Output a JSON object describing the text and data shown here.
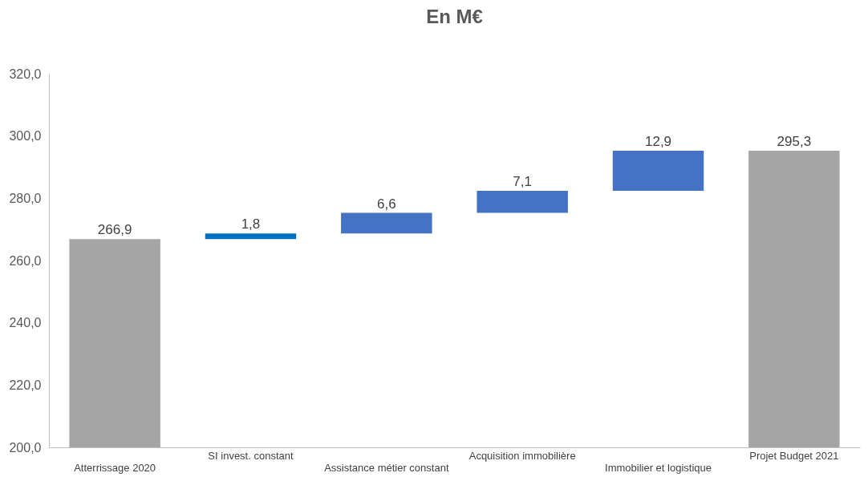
{
  "chart_data": {
    "type": "bar",
    "title": "En M€",
    "categories": [
      "Atterrissage 2020",
      "SI invest. constant",
      "Assistance métier constant",
      "Acquisition immobilière",
      "Immobilier et logistique",
      "Projet Budget 2021"
    ],
    "values": [
      266.9,
      1.8,
      6.6,
      7.1,
      12.9,
      295.3
    ],
    "base": [
      null,
      266.9,
      268.7,
      275.3,
      282.4,
      null
    ],
    "colors": [
      "#a5a5a5",
      "#0070c0",
      "#4472c4",
      "#4472c4",
      "#4472c4",
      "#a5a5a5"
    ],
    "value_labels": [
      "266,9",
      "1,8",
      "6,6",
      "7,1",
      "12,9",
      "295,3"
    ],
    "ylim": [
      200,
      320
    ],
    "yticks": [
      {
        "value": 200,
        "label": "200,0"
      },
      {
        "value": 220,
        "label": "220,0"
      },
      {
        "value": 240,
        "label": "240,0"
      },
      {
        "value": 260,
        "label": "260,0"
      },
      {
        "value": 280,
        "label": "280,0"
      },
      {
        "value": 300,
        "label": "300,0"
      },
      {
        "value": 320,
        "label": "320,0"
      }
    ],
    "grid": false
  }
}
